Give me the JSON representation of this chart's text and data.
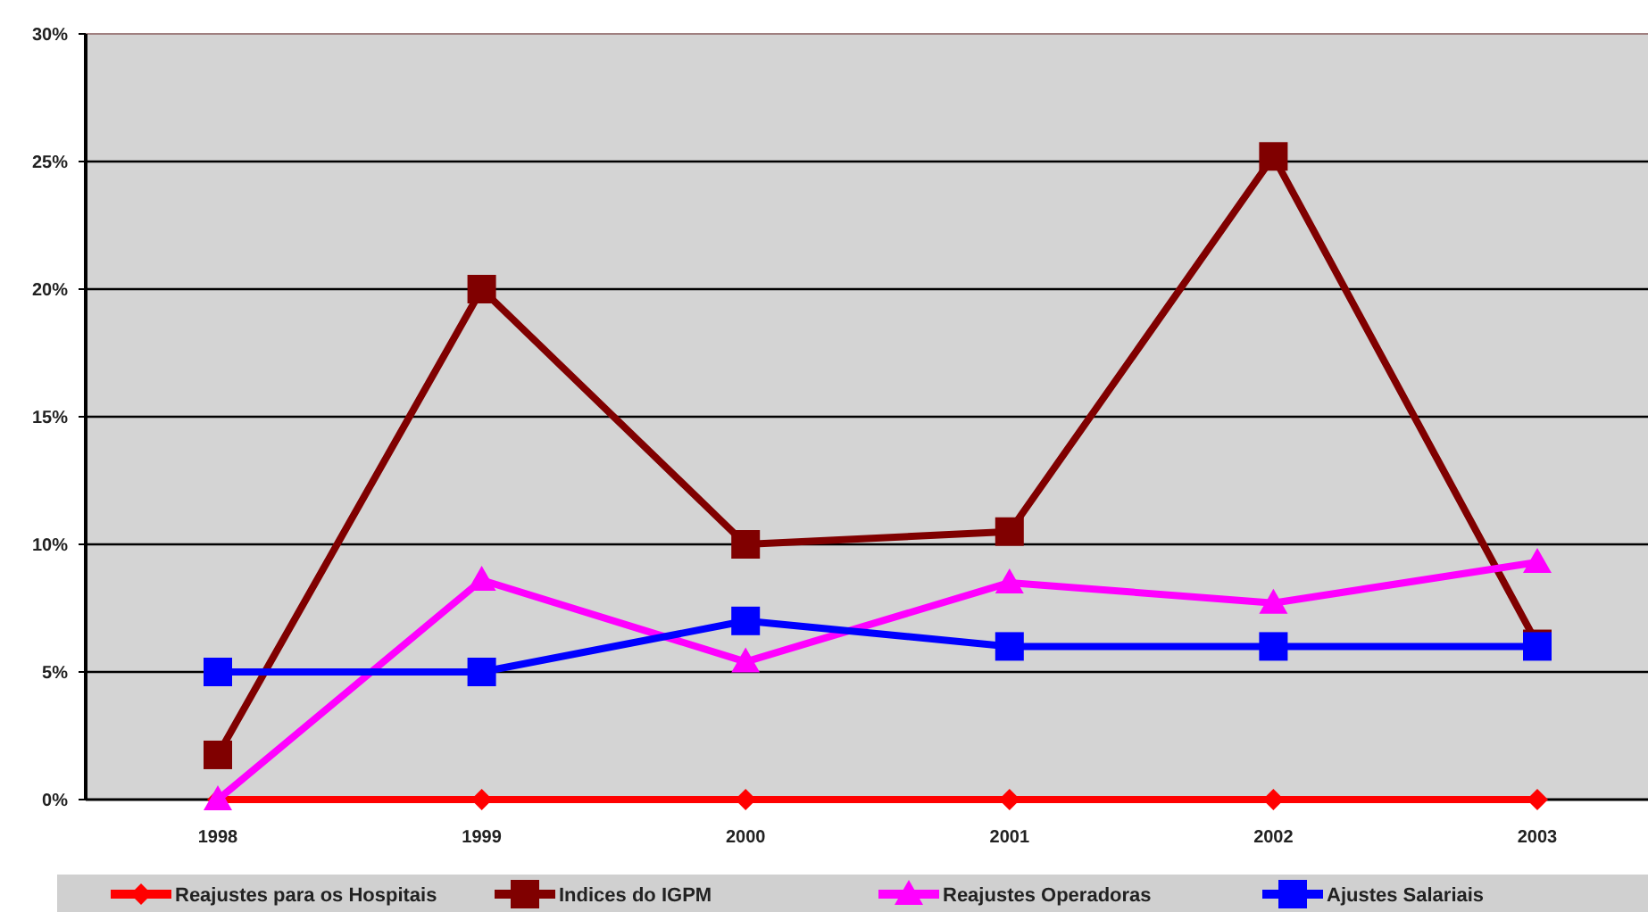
{
  "chart_data": {
    "type": "line",
    "categories": [
      "1998",
      "1999",
      "2000",
      "2001",
      "2002",
      "2003"
    ],
    "series": [
      {
        "name": "Reajustes para os Hospitais",
        "color": "#ff0000",
        "marker": "diamond",
        "values": [
          0,
          0,
          0,
          0,
          0,
          0
        ]
      },
      {
        "name": "Indices do IGPM",
        "color": "#800000",
        "marker": "square",
        "values": [
          1.75,
          20,
          10,
          10.5,
          25.2,
          6.1
        ]
      },
      {
        "name": "Reajustes Operadoras",
        "color": "#ff00ff",
        "marker": "triangle",
        "values": [
          0,
          8.6,
          5.4,
          8.5,
          7.7,
          9.3
        ]
      },
      {
        "name": "Ajustes Salariais",
        "color": "#0000ff",
        "marker": "square",
        "values": [
          5,
          5,
          7,
          6,
          6,
          6
        ]
      }
    ],
    "ylim": [
      0,
      30
    ],
    "yticks": [
      {
        "value": 0,
        "label": "0%"
      },
      {
        "value": 5,
        "label": "5%"
      },
      {
        "value": 10,
        "label": "10%"
      },
      {
        "value": 15,
        "label": "15%"
      },
      {
        "value": 20,
        "label": "20%"
      },
      {
        "value": 25,
        "label": "25%"
      },
      {
        "value": 30,
        "label": "30%"
      }
    ],
    "grid": "y",
    "legend": "bottom"
  }
}
